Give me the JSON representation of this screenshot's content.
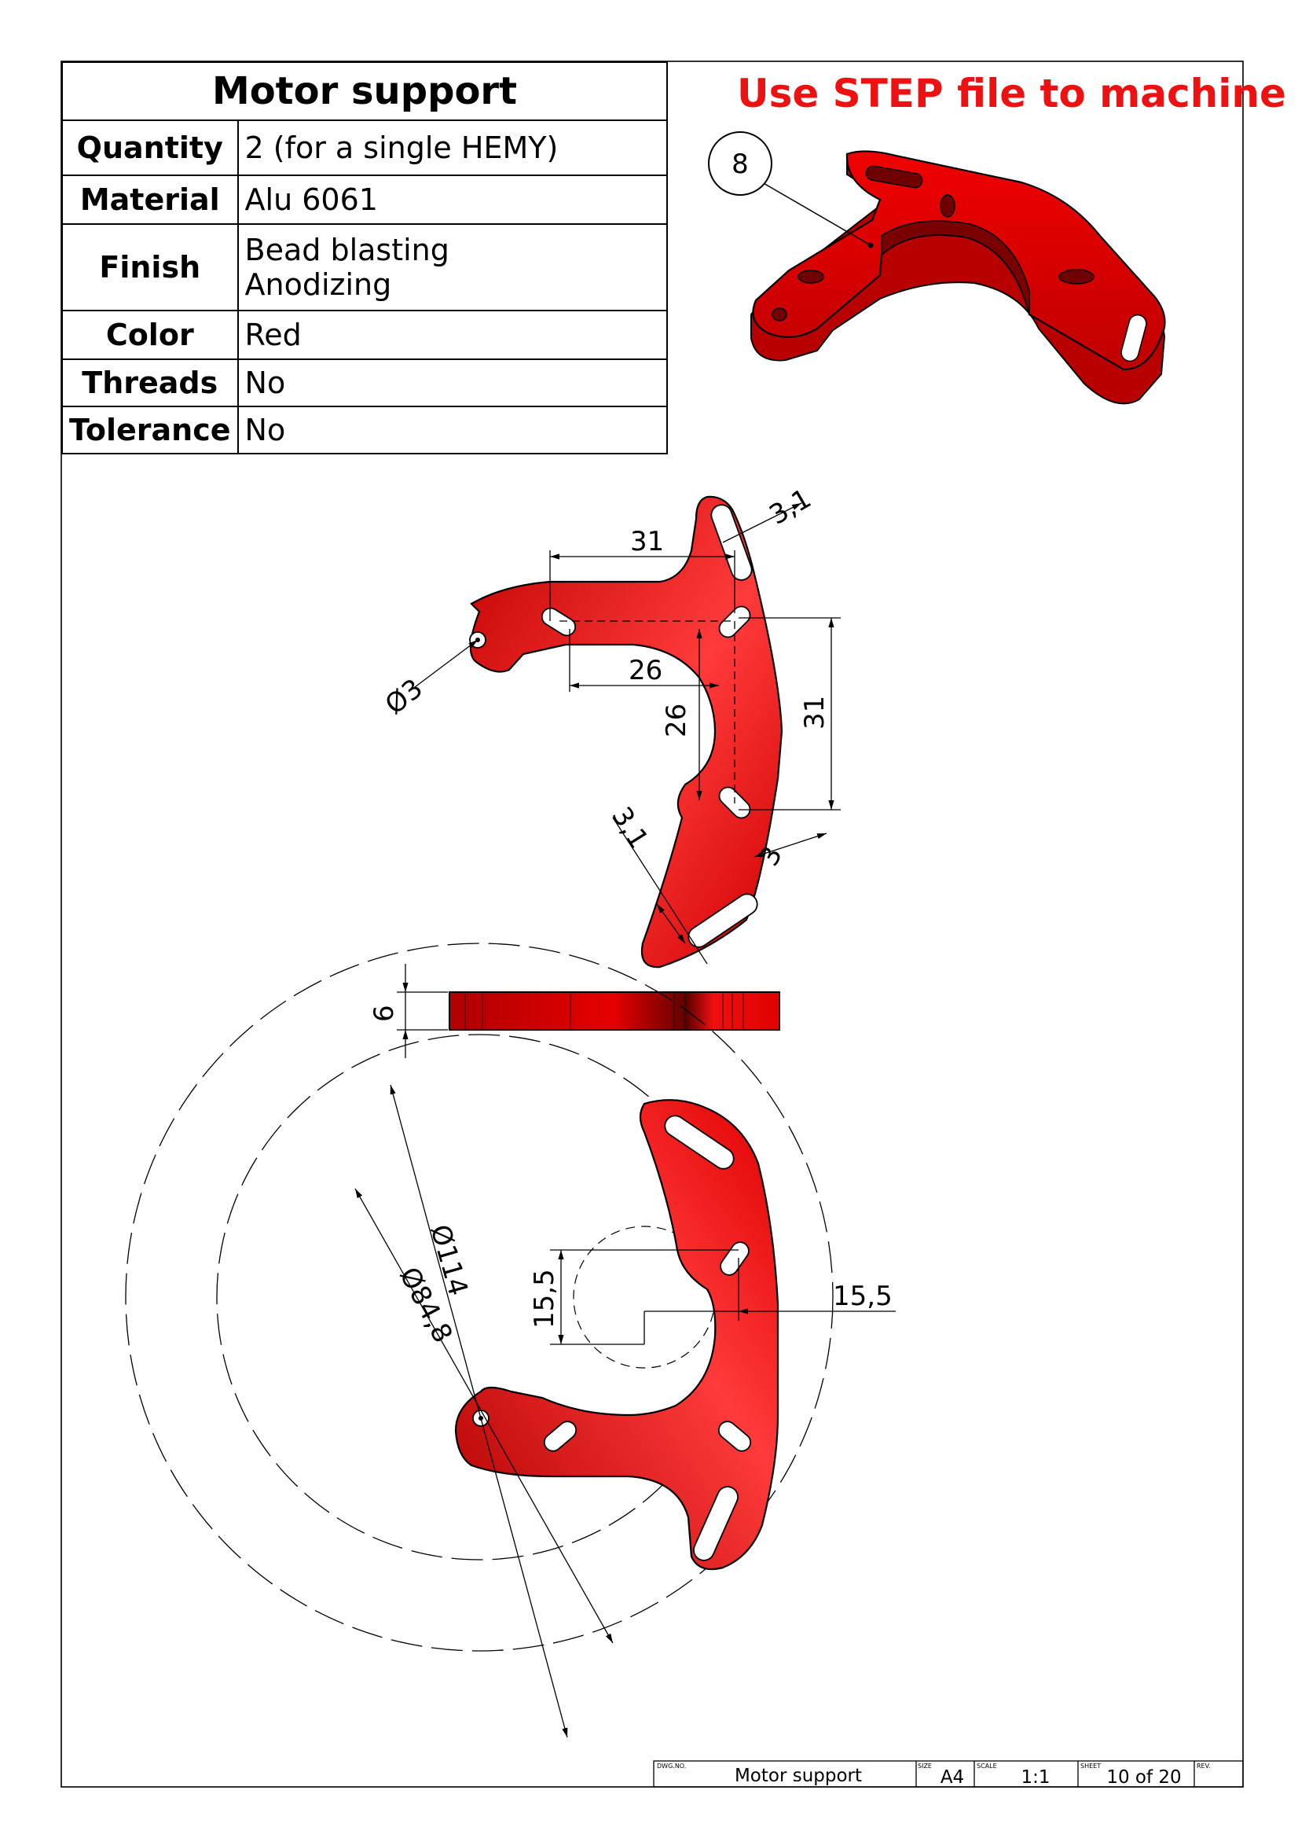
{
  "title_table": {
    "title": "Motor support",
    "rows": [
      {
        "key": "Quantity",
        "value": [
          "2 (for a single HEMY)"
        ]
      },
      {
        "key": "Material",
        "value": [
          "Alu 6061"
        ]
      },
      {
        "key": "Finish",
        "value": [
          "Bead blasting",
          "Anodizing"
        ]
      },
      {
        "key": "Color",
        "value": [
          "Red"
        ]
      },
      {
        "key": "Threads",
        "value": [
          "No"
        ]
      },
      {
        "key": "Tolerance",
        "value": [
          "No"
        ]
      }
    ]
  },
  "note": "Use STEP file to machine",
  "balloon": "8",
  "dimensions": {
    "slot_offset_top": "3,1",
    "width_top": "31",
    "hole_dia": "Ø3",
    "inner_26_h": "26",
    "inner_26_v": "26",
    "height_31": "31",
    "slot_offset_bottom": "3,1",
    "edge_3": "3",
    "thickness": "6",
    "dia_114": "Ø114",
    "dia_84": "Ø84,8",
    "center_v": "15,5",
    "center_h": "15,5"
  },
  "title_block": {
    "dwg_no_label": "DWG.NO.",
    "dwg_name": "Motor support",
    "size_label": "SIZE",
    "size": "A4",
    "scale_label": "SCALE",
    "scale": "1:1",
    "sheet_label": "SHEET",
    "sheet": "10 of 20",
    "rev_label": "REV."
  },
  "colors": {
    "part_red": "#e00000",
    "part_light": "#ff4040",
    "part_dark": "#a00000",
    "note_red": "#ee1111"
  }
}
